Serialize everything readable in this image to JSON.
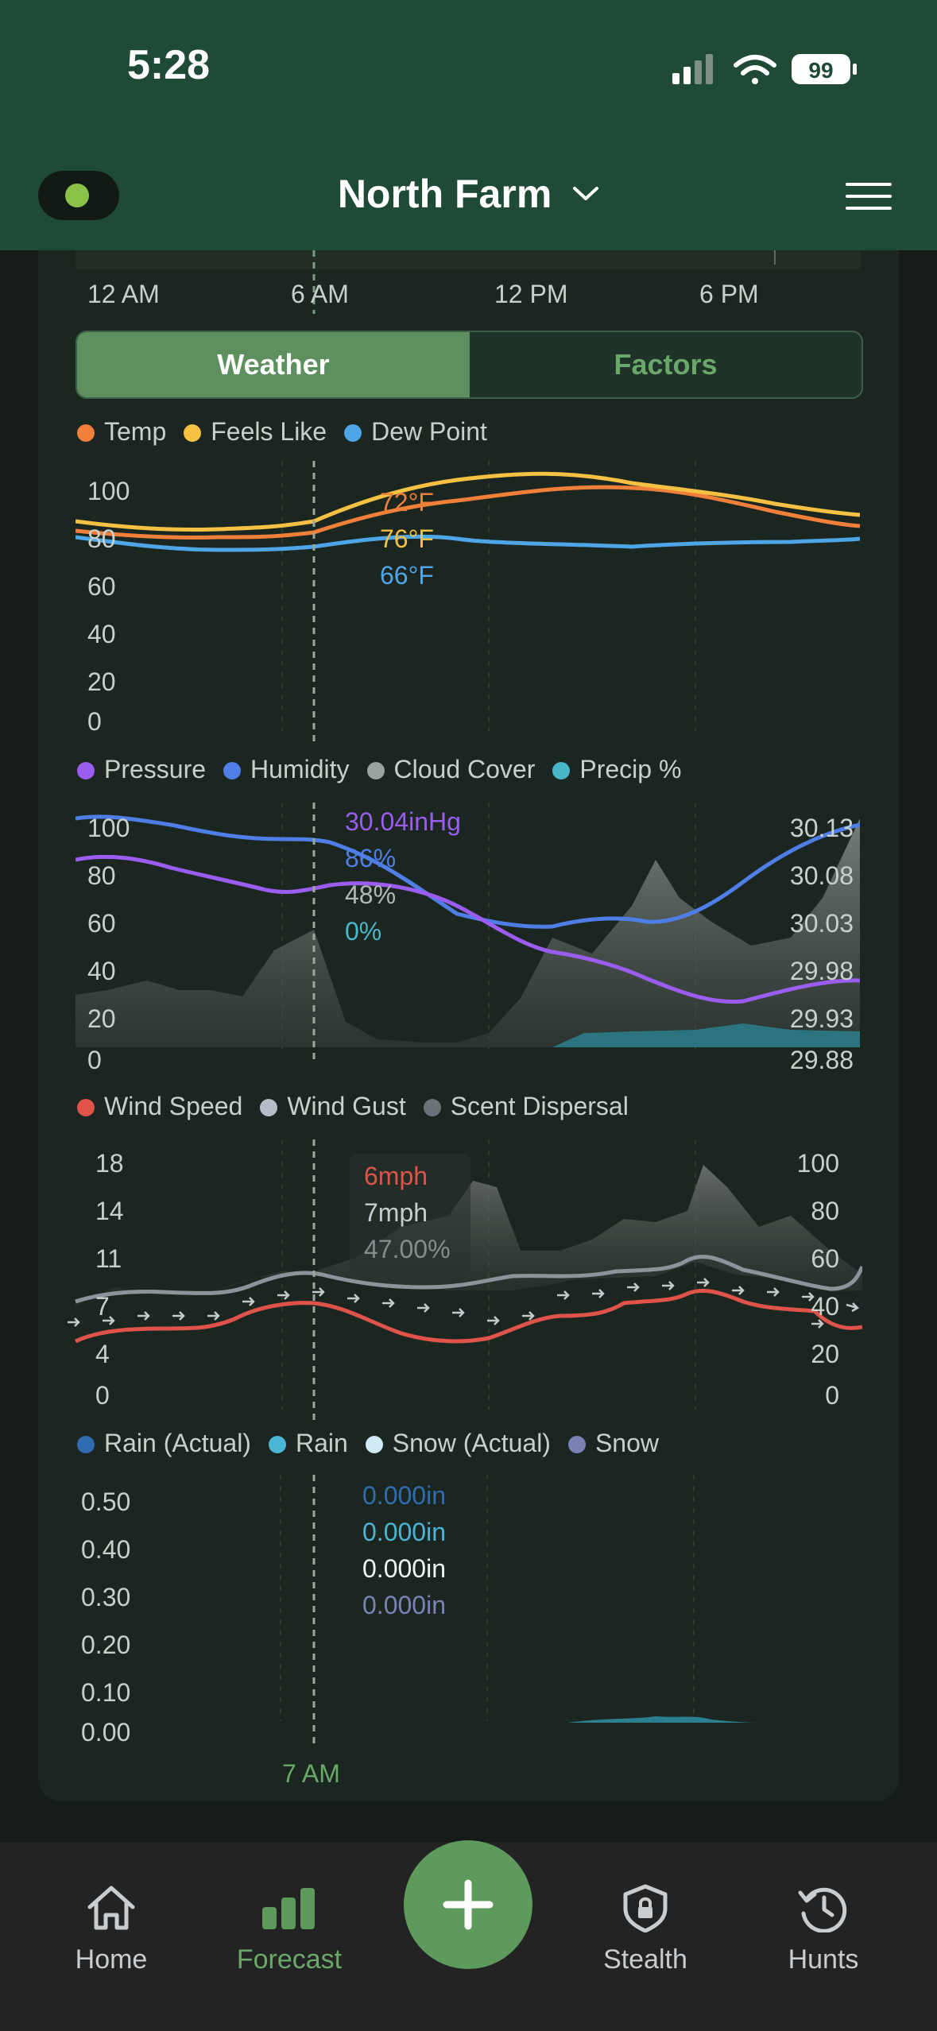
{
  "status": {
    "time": "5:28",
    "battery": "99"
  },
  "header": {
    "title": "North Farm"
  },
  "timeline": {
    "labels": [
      "12 AM",
      "6 AM",
      "12 PM",
      "6 PM"
    ]
  },
  "segment": {
    "weather": "Weather",
    "factors": "Factors"
  },
  "charts": {
    "temperature": {
      "legend": [
        "Temp",
        "Feels Like",
        "Dew Point"
      ],
      "y_ticks": [
        "100",
        "80",
        "60",
        "40",
        "20",
        "0"
      ],
      "readout": {
        "temp": "72°F",
        "feels_like": "76°F",
        "dew_point": "66°F"
      }
    },
    "pressure": {
      "legend": [
        "Pressure",
        "Humidity",
        "Cloud Cover",
        "Precip %"
      ],
      "y_ticks": [
        "100",
        "80",
        "60",
        "40",
        "20",
        "0"
      ],
      "y2_ticks": [
        "30.13",
        "30.08",
        "30.03",
        "29.98",
        "29.93",
        "29.88"
      ],
      "readout": {
        "pressure": "30.04inHg",
        "humidity": "86%",
        "cloud": "48%",
        "precip": "0%"
      }
    },
    "wind": {
      "legend": [
        "Wind Speed",
        "Wind Gust",
        "Scent Dispersal"
      ],
      "y_ticks": [
        "18",
        "14",
        "11",
        "7",
        "4",
        "0"
      ],
      "y2_ticks": [
        "100",
        "80",
        "60",
        "40",
        "20",
        "0"
      ],
      "readout": {
        "speed": "6mph",
        "gust": "7mph",
        "scent": "47.00%"
      }
    },
    "precip": {
      "legend": [
        "Rain (Actual)",
        "Rain",
        "Snow (Actual)",
        "Snow"
      ],
      "y_ticks": [
        "0.50",
        "0.40",
        "0.30",
        "0.20",
        "0.10",
        "0.00"
      ],
      "readout": {
        "rain_actual": "0.000in",
        "rain": "0.000in",
        "snow_actual": "0.000in",
        "snow": "0.000in"
      },
      "cursor_label": "7 AM"
    }
  },
  "colors": {
    "temp": "#f07f3a",
    "feels_like": "#f5c142",
    "dew_point": "#4ea6e8",
    "pressure": "#9b5cf0",
    "humidity": "#4f7fe6",
    "cloud": "#9aa3a0",
    "precip": "#49b6c9",
    "wind_speed": "#e0534a",
    "wind_gust": "#b8bcc6",
    "scent": "#6d7278",
    "rain_actual": "#2f6db0",
    "rain": "#4bb5d6",
    "snow_actual": "#cfe9f7",
    "snow": "#7c82b8"
  },
  "tabs": [
    {
      "label": "Home",
      "icon": "home-icon"
    },
    {
      "label": "Forecast",
      "icon": "bar-chart-icon"
    },
    {
      "label": "Stealth",
      "icon": "shield-lock-icon"
    },
    {
      "label": "Hunts",
      "icon": "history-icon"
    }
  ]
}
